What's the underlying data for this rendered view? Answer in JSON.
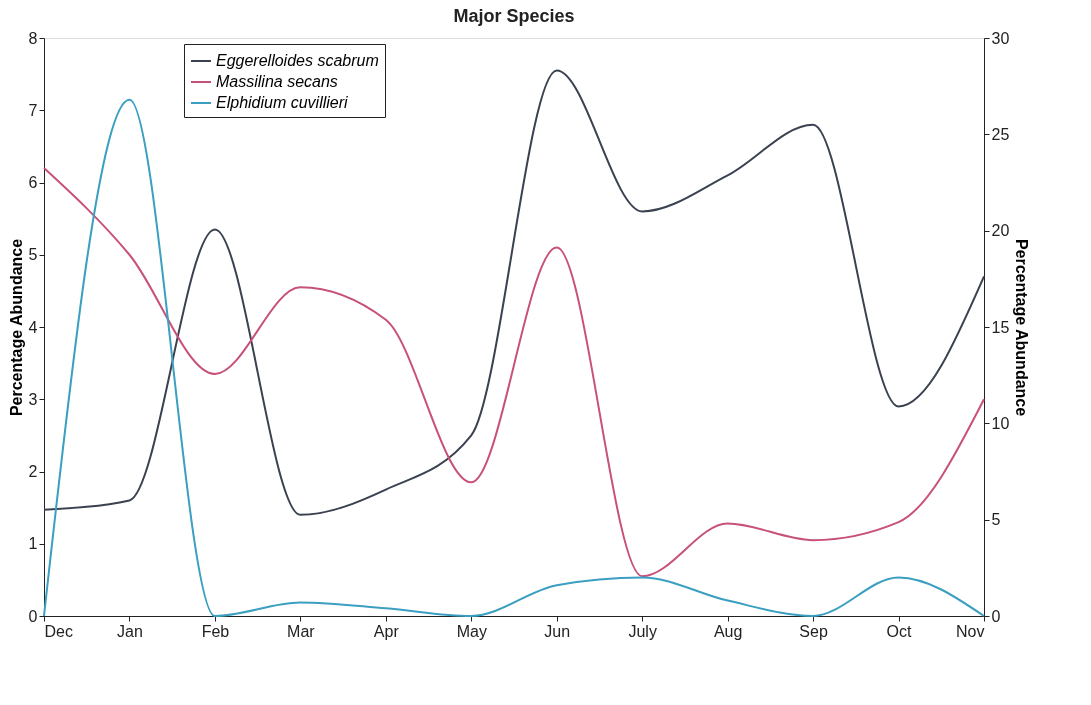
{
  "chart_data": {
    "type": "line",
    "title": "Major Species",
    "ylabel": "Percentage Abundance",
    "y2label": "Percentage Abundance",
    "categories": [
      "Dec",
      "Jan",
      "Feb",
      "Mar",
      "Apr",
      "May",
      "Jun",
      "July",
      "Aug",
      "Sep",
      "Oct",
      "Nov"
    ],
    "series": [
      {
        "name": "Eggerelloides scabrum",
        "color": "#3a4150",
        "values": [
          1.47,
          1.6,
          5.35,
          1.4,
          1.75,
          2.5,
          7.55,
          5.6,
          6.1,
          6.8,
          2.9,
          4.7
        ]
      },
      {
        "name": "Massilina secans",
        "color": "#c8517a",
        "values": [
          6.2,
          5.0,
          3.35,
          4.55,
          4.1,
          1.85,
          5.1,
          0.55,
          1.28,
          1.05,
          1.3,
          3.0
        ]
      },
      {
        "name": "Elphidium cuvillieri",
        "color": "#3a9fc0",
        "axis": "y2",
        "values": [
          0,
          26.8,
          0,
          0.7,
          0.4,
          0,
          1.6,
          2.0,
          0.8,
          0,
          2.0,
          0
        ]
      }
    ],
    "ylim": [
      0,
      8
    ],
    "yticks": [
      0,
      1,
      2,
      3,
      4,
      5,
      6,
      7,
      8
    ],
    "y2lim": [
      0,
      30
    ],
    "y2ticks": [
      0,
      5,
      10,
      15,
      20,
      25,
      30
    ],
    "grid": false,
    "legend": "top left",
    "marker": "none",
    "line_style": "solid"
  }
}
